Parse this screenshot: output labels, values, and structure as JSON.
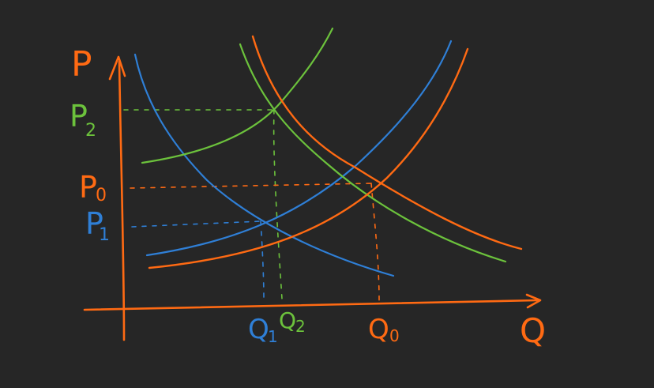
{
  "colors": {
    "background": "#262626",
    "orange": "#ff6a13",
    "blue": "#2f7fd6",
    "green": "#6cc23c"
  },
  "axes": {
    "y_label": "P",
    "x_label": "Q"
  },
  "price_labels": {
    "p2": "P",
    "p2_sub": "2",
    "p0": "P",
    "p0_sub": "0",
    "p1": "P",
    "p1_sub": "1"
  },
  "quantity_labels": {
    "q1": "Q",
    "q1_sub": "1",
    "q2": "Q",
    "q2_sub": "2",
    "q0": "Q",
    "q0_sub": "0"
  }
}
